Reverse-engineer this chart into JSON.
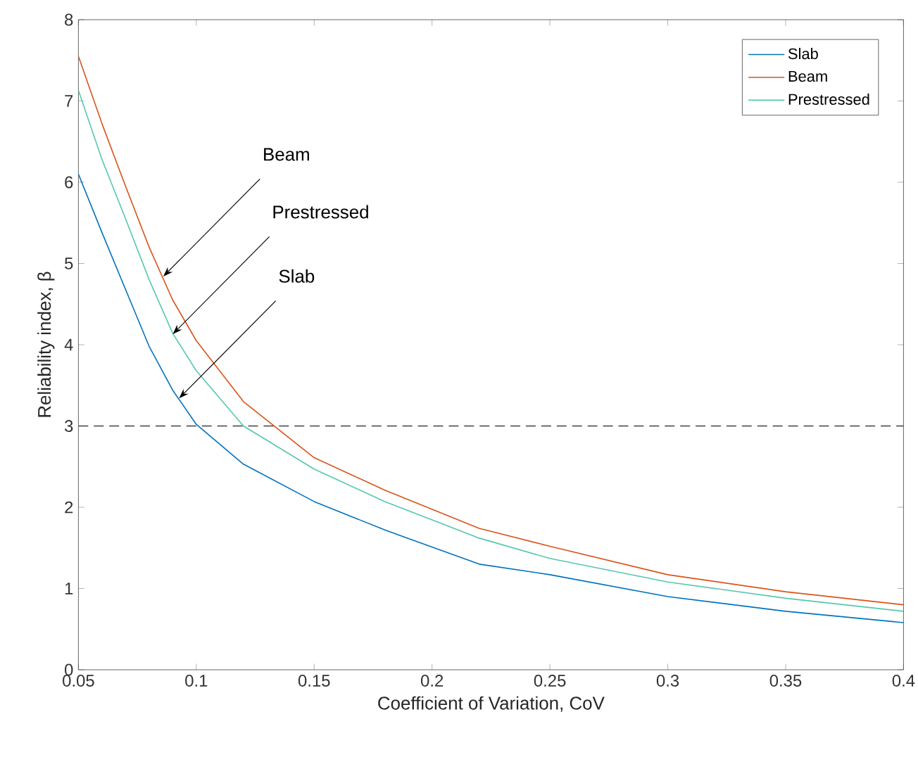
{
  "chart_data": {
    "type": "line",
    "xlabel": "Coefficient of Variation, CoV",
    "ylabel": "Reliability index, β",
    "x": [
      0.05,
      0.06,
      0.07,
      0.08,
      0.09,
      0.1,
      0.12,
      0.15,
      0.18,
      0.22,
      0.25,
      0.3,
      0.35,
      0.4
    ],
    "series": [
      {
        "name": "Slab",
        "color": "#0072bd",
        "values": [
          6.1,
          5.38,
          4.68,
          3.98,
          3.44,
          3.02,
          2.53,
          2.07,
          1.72,
          1.3,
          1.17,
          0.9,
          0.72,
          0.58
        ]
      },
      {
        "name": "Beam",
        "color": "#d95319",
        "values": [
          7.55,
          6.72,
          5.95,
          5.2,
          4.55,
          4.05,
          3.3,
          2.61,
          2.21,
          1.74,
          1.52,
          1.17,
          0.96,
          0.8
        ]
      },
      {
        "name": "Prestressed",
        "color": "#55c7ae",
        "values": [
          7.13,
          6.28,
          5.55,
          4.8,
          4.14,
          3.68,
          3.0,
          2.47,
          2.07,
          1.62,
          1.37,
          1.08,
          0.88,
          0.72
        ]
      }
    ],
    "xlim": [
      0.05,
      0.4
    ],
    "xticks": [
      0.05,
      0.1,
      0.15,
      0.2,
      0.25,
      0.3,
      0.35,
      0.4
    ],
    "ylim": [
      0,
      8
    ],
    "yticks": [
      0,
      1,
      2,
      3,
      4,
      5,
      6,
      7,
      8
    ],
    "ref_lines": [
      {
        "axis": "y",
        "value": 3,
        "color": "#404040",
        "line_style": "dashed"
      }
    ],
    "annotations": [
      {
        "text": "Beam",
        "x": 0.086,
        "y": 4.84
      },
      {
        "text": "Prestressed",
        "x": 0.09,
        "y": 4.13
      },
      {
        "text": "Slab",
        "x": 0.0927,
        "y": 3.34
      }
    ],
    "legend": "top right",
    "grid": false,
    "marker": "none",
    "line_style": "solid"
  }
}
